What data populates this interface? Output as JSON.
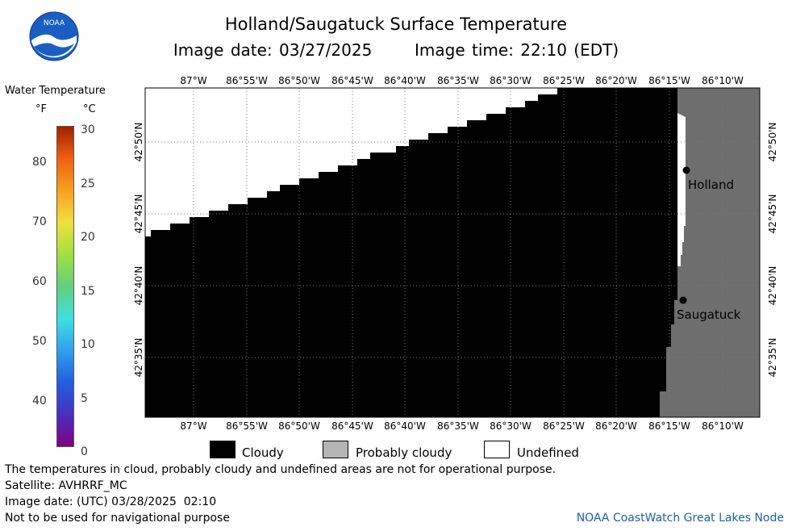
{
  "header": {
    "title": "Holland/Saugatuck Surface Temperature",
    "image_date_label": "Image date: 03/27/2025",
    "image_time_label": "Image time: 22:10 (EDT)",
    "logo_text": "NOAA"
  },
  "scale": {
    "title": "Water Temperature",
    "unit_f": "°F",
    "unit_c": "°C",
    "fahrenheit_ticks": [
      "80",
      "70",
      "60",
      "50",
      "40"
    ],
    "celsius_ticks": [
      "30",
      "25",
      "20",
      "15",
      "10",
      "5",
      "0"
    ],
    "colors": [
      "#800080",
      "#4b2fc0",
      "#2060e0",
      "#30a0f0",
      "#40e0e0",
      "#60d080",
      "#a0e040",
      "#f0e040",
      "#f8a020",
      "#f06010",
      "#a02000"
    ]
  },
  "map": {
    "longitude_labels": [
      "87°W",
      "86°55'W",
      "86°50'W",
      "86°45'W",
      "86°40'W",
      "86°35'W",
      "86°30'W",
      "86°25'W",
      "86°20'W",
      "86°15'W",
      "86°10'W"
    ],
    "latitude_labels": [
      "42°50'N",
      "42°45'N",
      "42°40'N",
      "42°35'N"
    ],
    "cities": [
      {
        "name": "Holland"
      },
      {
        "name": "Saugatuck"
      }
    ],
    "colors": {
      "cloudy": "#000000",
      "land": "#6e6e6e",
      "undefined": "#ffffff",
      "grid": "#7a7a7a"
    }
  },
  "legend": {
    "items": [
      {
        "label": "Cloudy",
        "color": "#000000"
      },
      {
        "label": "Probably cloudy",
        "color": "#b4b4b4"
      },
      {
        "label": "Undefined",
        "color": "#ffffff"
      }
    ]
  },
  "footer": {
    "disclaimer": "The temperatures in cloud, probably cloudy and undefined areas are not for operational purpose.",
    "satellite": "Satellite: AVHRRF_MC",
    "utc_date": "Image date: (UTC) 03/28/2025  02:10",
    "nav_warning": "Not to be used for navigational purpose",
    "credit": "NOAA CoastWatch Great Lakes Node"
  }
}
